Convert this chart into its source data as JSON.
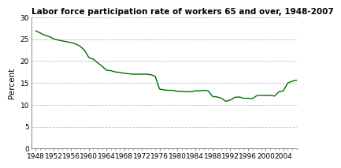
{
  "title": "Labor force participation rate of workers 65 and over, 1948-2007",
  "ylabel": "Percent",
  "line_color": "#007000",
  "background_color": "#ffffff",
  "plot_background": "#ffffff",
  "ylim": [
    0,
    30
  ],
  "yticks": [
    0,
    5,
    10,
    15,
    20,
    25,
    30
  ],
  "xlim": [
    1947,
    2007
  ],
  "xticks": [
    1948,
    1952,
    1956,
    1960,
    1964,
    1968,
    1972,
    1976,
    1980,
    1984,
    1988,
    1992,
    1996,
    2000,
    2004
  ],
  "years": [
    1948,
    1949,
    1950,
    1951,
    1952,
    1953,
    1954,
    1955,
    1956,
    1957,
    1958,
    1959,
    1960,
    1961,
    1962,
    1963,
    1964,
    1965,
    1966,
    1967,
    1968,
    1969,
    1970,
    1971,
    1972,
    1973,
    1974,
    1975,
    1976,
    1977,
    1978,
    1979,
    1980,
    1981,
    1982,
    1983,
    1984,
    1985,
    1986,
    1987,
    1988,
    1989,
    1990,
    1991,
    1992,
    1993,
    1994,
    1995,
    1996,
    1997,
    1998,
    1999,
    2000,
    2001,
    2002,
    2003,
    2004,
    2005,
    2006,
    2007
  ],
  "values": [
    26.9,
    26.4,
    25.9,
    25.6,
    25.1,
    24.8,
    24.6,
    24.4,
    24.2,
    23.9,
    23.4,
    22.5,
    20.8,
    20.4,
    19.6,
    18.8,
    17.9,
    17.8,
    17.5,
    17.4,
    17.2,
    17.1,
    17.0,
    17.0,
    17.0,
    17.0,
    16.9,
    16.5,
    13.6,
    13.4,
    13.3,
    13.3,
    13.1,
    13.1,
    13.0,
    13.0,
    13.2,
    13.2,
    13.3,
    13.2,
    11.9,
    11.8,
    11.5,
    10.8,
    11.1,
    11.7,
    11.8,
    11.5,
    11.5,
    11.4,
    12.1,
    12.2,
    12.1,
    12.2,
    12.0,
    13.0,
    13.2,
    15.0,
    15.4,
    15.6
  ],
  "title_fontsize": 7.5,
  "ylabel_fontsize": 7.5,
  "tick_fontsize": 6.5
}
